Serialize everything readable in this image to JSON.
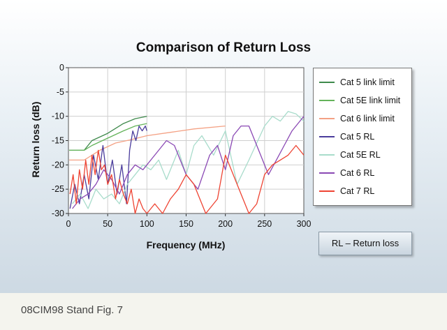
{
  "chart_data": {
    "type": "line",
    "title": "Comparison of Return Loss",
    "xlabel": "Frequency (MHz)",
    "ylabel": "Return loss (dB)",
    "xlim": [
      0,
      300
    ],
    "ylim": [
      -30,
      0
    ],
    "xticks": [
      0,
      50,
      100,
      150,
      200,
      250,
      300
    ],
    "yticks": [
      0,
      -5,
      -10,
      -15,
      -20,
      -25,
      -30
    ],
    "grid": true,
    "legend_position": "right",
    "series": [
      {
        "name": "Cat 5 link limit",
        "color": "#3f8a4c",
        "x": [
          1,
          20,
          30,
          50,
          70,
          85,
          100
        ],
        "y": [
          -17,
          -17,
          -15,
          -13.5,
          -11.5,
          -10.5,
          -10
        ]
      },
      {
        "name": "Cat 5E link limit",
        "color": "#64b35a",
        "x": [
          1,
          20,
          30,
          50,
          70,
          85,
          100
        ],
        "y": [
          -17,
          -17,
          -16,
          -14.5,
          -13,
          -12,
          -11.5
        ]
      },
      {
        "name": "Cat 6 link limit",
        "color": "#f4a184",
        "x": [
          1,
          20,
          40,
          60,
          80,
          100,
          130,
          160,
          200
        ],
        "y": [
          -19,
          -19,
          -17,
          -15.5,
          -14.8,
          -14,
          -13.3,
          -12.6,
          -12
        ]
      },
      {
        "name": "Cat 5 RL",
        "color": "#4a3c9c",
        "x": [
          2,
          8,
          14,
          20,
          26,
          32,
          38,
          44,
          50,
          56,
          62,
          68,
          74,
          78,
          82,
          86,
          90,
          94,
          98,
          100
        ],
        "y": [
          -29,
          -24,
          -28,
          -22,
          -27,
          -18,
          -23,
          -16,
          -24,
          -19,
          -26,
          -20,
          -28,
          -17,
          -13,
          -15,
          -12,
          -13,
          -12,
          -13
        ]
      },
      {
        "name": "Cat 5E RL",
        "color": "#a8dccb",
        "x": [
          5,
          15,
          25,
          35,
          45,
          55,
          65,
          75,
          85,
          95,
          105,
          115,
          125,
          140,
          150,
          160,
          170,
          185,
          200,
          215,
          230,
          250,
          260,
          270,
          280,
          290,
          300
        ],
        "y": [
          -28,
          -26,
          -29,
          -25,
          -27,
          -26,
          -28,
          -24,
          -22,
          -20,
          -21,
          -19,
          -23,
          -17,
          -22,
          -16,
          -14,
          -18,
          -13,
          -24,
          -19,
          -12,
          -10,
          -11,
          -9,
          -9.5,
          -11
        ]
      },
      {
        "name": "Cat 6 RL",
        "color": "#8a48b4",
        "x": [
          5,
          15,
          25,
          35,
          45,
          55,
          65,
          75,
          85,
          95,
          105,
          115,
          125,
          135,
          150,
          165,
          180,
          190,
          200,
          210,
          220,
          230,
          245,
          255,
          265,
          275,
          285,
          295,
          300
        ],
        "y": [
          -29,
          -27,
          -26,
          -24,
          -21,
          -23,
          -26,
          -22,
          -20,
          -21,
          -19,
          -17,
          -15,
          -16,
          -22,
          -25,
          -18,
          -16,
          -21,
          -14,
          -12,
          -12,
          -18,
          -22,
          -19,
          -16,
          -13,
          -11,
          -10
        ]
      },
      {
        "name": "Cat 7 RL",
        "color": "#ee4433",
        "x": [
          2,
          6,
          10,
          14,
          18,
          22,
          26,
          30,
          34,
          38,
          42,
          46,
          50,
          55,
          60,
          65,
          70,
          75,
          80,
          85,
          90,
          95,
          100,
          110,
          120,
          130,
          140,
          150,
          160,
          175,
          190,
          200,
          210,
          220,
          230,
          240,
          250,
          260,
          270,
          280,
          290,
          300
        ],
        "y": [
          -26,
          -22,
          -28,
          -21,
          -25,
          -19,
          -24,
          -18,
          -22,
          -17,
          -21,
          -20,
          -24,
          -22,
          -27,
          -23,
          -26,
          -28,
          -25,
          -30,
          -27,
          -29,
          -30,
          -28,
          -30,
          -27,
          -25,
          -22,
          -24,
          -30,
          -27,
          -18,
          -22,
          -26,
          -30,
          -28,
          -22,
          -20,
          -19,
          -18,
          -16,
          -18
        ]
      }
    ]
  },
  "note_label": "RL – Return loss",
  "caption": "08CIM98 Stand Fig. 7"
}
